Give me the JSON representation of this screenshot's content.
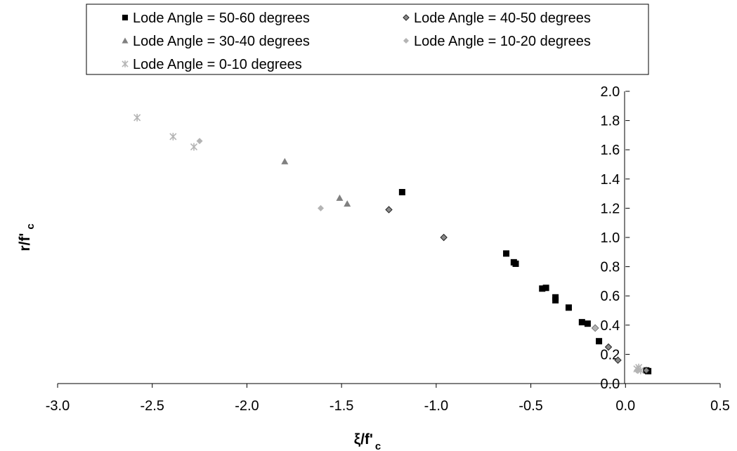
{
  "chart_data": {
    "type": "scatter",
    "title": "",
    "xlabel": "ξ/f'c",
    "xlabel_main": "ξ/f'",
    "xlabel_sub": "c",
    "ylabel": "r/f'c",
    "ylabel_main": "r/f'",
    "ylabel_sub": "c",
    "xlim": [
      -3.0,
      0.5
    ],
    "ylim": [
      0.0,
      2.0
    ],
    "x_ticks": [
      "-3.0",
      "-2.5",
      "-2.0",
      "-1.5",
      "-1.0",
      "-0.5",
      "0.0",
      "0.5"
    ],
    "y_ticks": [
      "0.0",
      "0.2",
      "0.4",
      "0.6",
      "0.8",
      "1.0",
      "1.2",
      "1.4",
      "1.6",
      "1.8",
      "2.0"
    ],
    "grid": false,
    "legend_position": "top",
    "series": [
      {
        "name": "Lode Angle = 50-60 degrees",
        "marker": "square",
        "color": "#000000",
        "points": [
          [
            -1.18,
            1.31
          ],
          [
            -0.63,
            0.89
          ],
          [
            -0.59,
            0.83
          ],
          [
            -0.58,
            0.82
          ],
          [
            -0.44,
            0.65
          ],
          [
            -0.42,
            0.655
          ],
          [
            -0.37,
            0.59
          ],
          [
            -0.37,
            0.57
          ],
          [
            -0.3,
            0.52
          ],
          [
            -0.23,
            0.42
          ],
          [
            -0.2,
            0.41
          ],
          [
            -0.14,
            0.29
          ],
          [
            0.11,
            0.09
          ],
          [
            0.12,
            0.085
          ]
        ]
      },
      {
        "name": "Lode Angle = 40-50 degrees",
        "marker": "diamond-dark",
        "color": "#707070",
        "points": [
          [
            -1.25,
            1.19
          ],
          [
            -0.96,
            1.0
          ],
          [
            -0.16,
            0.38
          ],
          [
            -0.09,
            0.25
          ],
          [
            -0.04,
            0.16
          ],
          [
            0.11,
            0.09
          ]
        ]
      },
      {
        "name": "Lode Angle = 30-40 degrees",
        "marker": "triangle",
        "color": "#808080",
        "points": [
          [
            -1.8,
            1.52
          ],
          [
            -1.51,
            1.27
          ],
          [
            -1.47,
            1.23
          ]
        ]
      },
      {
        "name": "Lode Angle = 10-20 degrees",
        "marker": "diamond",
        "color": "#b4b4b4",
        "points": [
          [
            -2.25,
            1.66
          ],
          [
            -1.61,
            1.2
          ],
          [
            -0.16,
            0.38
          ],
          [
            0.06,
            0.09
          ]
        ]
      },
      {
        "name": "Lode Angle = 0-10 degrees",
        "marker": "star",
        "color": "#b4b4b4",
        "points": [
          [
            -2.58,
            1.82
          ],
          [
            -2.39,
            1.69
          ],
          [
            -2.28,
            1.62
          ],
          [
            0.06,
            0.1
          ],
          [
            0.07,
            0.11
          ],
          [
            0.08,
            0.09
          ]
        ]
      }
    ]
  }
}
